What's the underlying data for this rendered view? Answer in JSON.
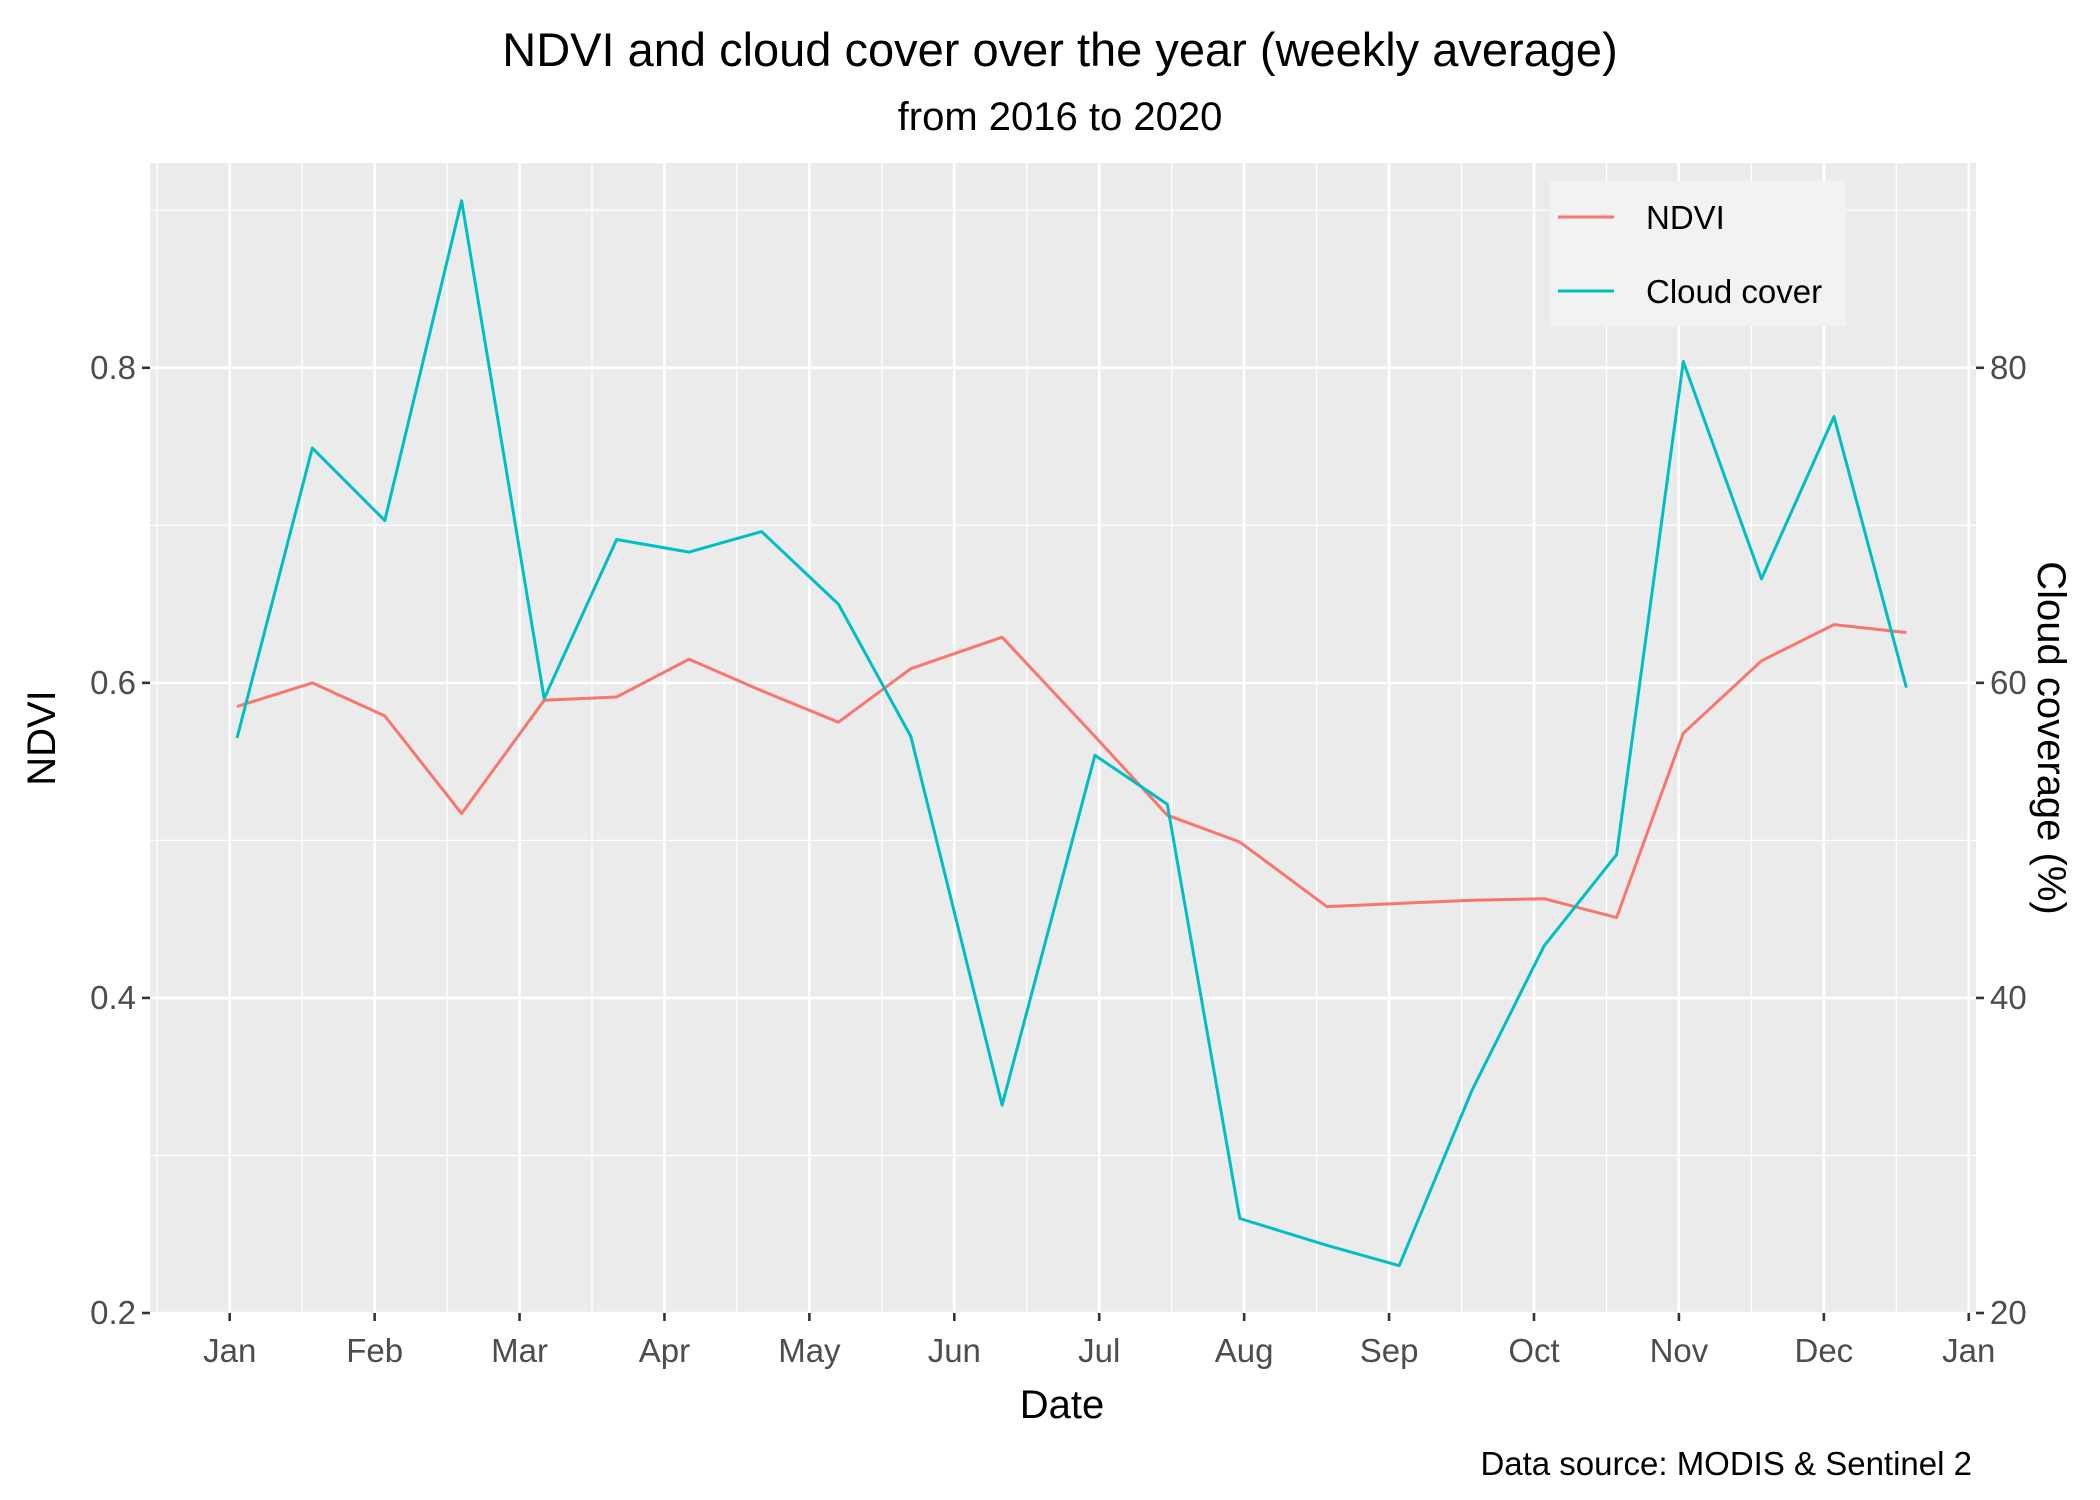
{
  "chart_data": {
    "type": "line",
    "title": "NDVI and cloud cover over the year (weekly average)",
    "subtitle": "from 2016 to 2020",
    "xlabel": "Date",
    "ylabel": "NDVI",
    "y2label": "Cloud coverage (%)",
    "caption": "Data source: MODIS & Sentinel 2",
    "x_tick_labels": [
      "Jan",
      "Feb",
      "Mar",
      "Apr",
      "May",
      "Jun",
      "Jul",
      "Aug",
      "Sep",
      "Oct",
      "Nov",
      "Dec",
      "Jan"
    ],
    "y_tick_labels": [
      "0.2",
      "0.4",
      "0.6",
      "0.8"
    ],
    "y_ticks": [
      0.2,
      0.4,
      0.6,
      0.8
    ],
    "y2_tick_labels": [
      "20",
      "40",
      "60",
      "80"
    ],
    "y2_ticks": [
      20,
      40,
      60,
      80
    ],
    "ylim": [
      0.2,
      0.93
    ],
    "y2lim": [
      20,
      93
    ],
    "xlim_month": [
      0.45,
      13.05
    ],
    "grid": true,
    "legend_position": "top-right",
    "x": [
      1.05,
      1.57,
      2.07,
      2.6,
      3.17,
      3.67,
      4.17,
      4.67,
      5.2,
      5.7,
      6.33,
      6.97,
      7.47,
      7.97,
      8.57,
      9.07,
      9.57,
      10.07,
      10.57,
      11.03,
      11.57,
      12.07,
      12.57
    ],
    "series": [
      {
        "name": "NDVI",
        "color": "#F8766D",
        "axis": "left",
        "values": [
          0.585,
          0.6,
          0.579,
          0.517,
          0.589,
          0.591,
          0.615,
          0.595,
          0.575,
          0.609,
          0.629,
          0.566,
          0.516,
          0.499,
          0.458,
          0.46,
          0.462,
          0.463,
          0.451,
          0.568,
          0.614,
          0.637,
          0.632
        ]
      },
      {
        "name": "Cloud cover",
        "color": "#00BFC4",
        "axis": "right",
        "values": [
          56.5,
          74.9,
          70.3,
          90.6,
          59.0,
          69.1,
          68.3,
          69.6,
          65.0,
          56.6,
          33.2,
          55.4,
          52.3,
          26.0,
          24.3,
          23.0,
          34.1,
          43.3,
          49.1,
          80.4,
          66.6,
          76.9,
          59.7
        ]
      }
    ]
  }
}
